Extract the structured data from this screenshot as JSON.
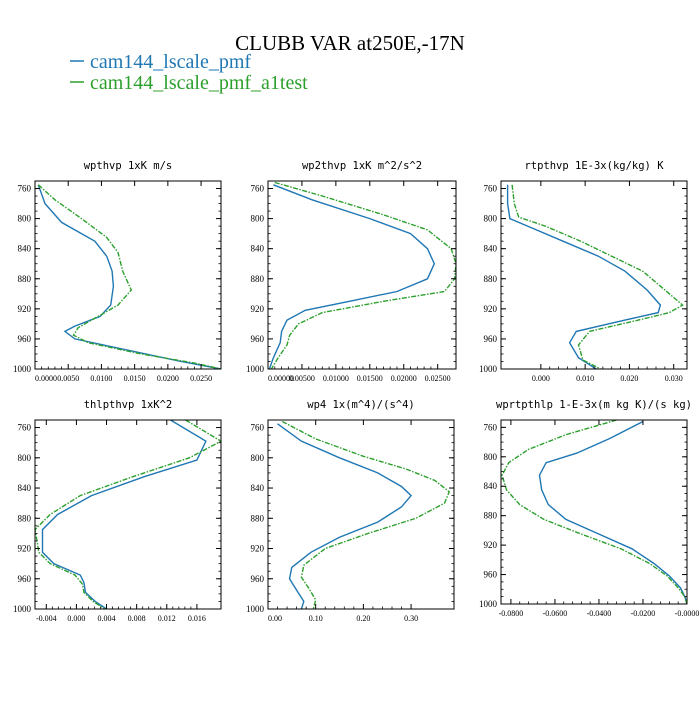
{
  "title": "CLUBB VAR at250E,-17N",
  "legend": [
    {
      "label": "cam144_lscale_pmf",
      "color": "#1f77b4"
    },
    {
      "label": "cam144_lscale_pmf_a1test",
      "color": "#2ca02c"
    }
  ],
  "chart_data": [
    {
      "type": "line",
      "title": "wpthvp  1xK m/s",
      "xlim": [
        0,
        0.028
      ],
      "ylim": [
        1000,
        750
      ],
      "xticks": [
        0,
        0.005,
        0.01,
        0.015,
        0.02,
        0.025
      ],
      "xtick_labels": [
        "0.0000",
        "0.0050",
        "0.0100",
        "0.0150",
        "0.0200",
        "0.0250"
      ],
      "yticks": [
        760,
        800,
        840,
        880,
        920,
        960,
        1000
      ],
      "series": [
        {
          "name": "cam144_lscale_pmf",
          "color": "#1f77b4",
          "dashed": false,
          "x": [
            0.0005,
            0.0015,
            0.004,
            0.009,
            0.0108,
            0.0116,
            0.0118,
            0.0114,
            0.0098,
            0.006,
            0.0045,
            0.006,
            0.014,
            0.022,
            0.028
          ],
          "y": [
            755,
            780,
            805,
            830,
            850,
            870,
            890,
            915,
            930,
            943,
            950,
            960,
            975,
            990,
            1000
          ]
        },
        {
          "name": "cam144_lscale_pmf_a1test",
          "color": "#2ca02c",
          "dashed": true,
          "x": [
            0.0005,
            0.003,
            0.007,
            0.0108,
            0.0125,
            0.0132,
            0.0145,
            0.0125,
            0.0095,
            0.0065,
            0.0058,
            0.008,
            0.016,
            0.024,
            0.028
          ],
          "y": [
            755,
            775,
            800,
            825,
            845,
            870,
            895,
            915,
            930,
            945,
            955,
            965,
            980,
            992,
            1000
          ]
        }
      ]
    },
    {
      "type": "line",
      "title": "wp2thvp  1xK m^2/s^2",
      "xlim": [
        0,
        0.0277
      ],
      "ylim": [
        1000,
        750
      ],
      "xticks": [
        0,
        0.005,
        0.01,
        0.015,
        0.02,
        0.025
      ],
      "xtick_labels": [
        "0.00000",
        "0.00500",
        "0.01000",
        "0.01500",
        "0.02000",
        "0.02500"
      ],
      "yticks": [
        760,
        800,
        840,
        880,
        920,
        960,
        1000
      ],
      "series": [
        {
          "name": "cam144_lscale_pmf",
          "color": "#1f77b4",
          "dashed": false,
          "x": [
            0.0008,
            0.0065,
            0.015,
            0.021,
            0.0235,
            0.0245,
            0.0235,
            0.019,
            0.012,
            0.0055,
            0.0028,
            0.002,
            0.0018,
            0.0008,
            0.0002
          ],
          "y": [
            755,
            775,
            800,
            820,
            840,
            860,
            880,
            897,
            910,
            922,
            935,
            950,
            965,
            985,
            1000
          ]
        },
        {
          "name": "cam144_lscale_pmf_a1test",
          "color": "#2ca02c",
          "dashed": true,
          "x": [
            0.001,
            0.008,
            0.017,
            0.0235,
            0.027,
            0.0277,
            0.0275,
            0.026,
            0.017,
            0.008,
            0.0045,
            0.0032,
            0.0028,
            0.0015,
            0.0005
          ],
          "y": [
            752,
            770,
            795,
            815,
            840,
            860,
            880,
            897,
            910,
            925,
            940,
            955,
            968,
            985,
            1000
          ]
        }
      ]
    },
    {
      "type": "line",
      "title": "rtpthvp  1E-3x(kg/kg) K",
      "xlim": [
        -0.009,
        0.033
      ],
      "ylim": [
        1000,
        750
      ],
      "xticks": [
        0,
        0.01,
        0.02,
        0.03
      ],
      "xtick_labels": [
        "0.000",
        "0.010",
        "0.020",
        "0.030"
      ],
      "yticks": [
        760,
        800,
        840,
        880,
        920,
        960,
        1000
      ],
      "series": [
        {
          "name": "cam144_lscale_pmf",
          "color": "#1f77b4",
          "dashed": false,
          "x": [
            -0.0075,
            -0.0075,
            -0.007,
            -0.003,
            0.005,
            0.013,
            0.019,
            0.024,
            0.027,
            0.0265,
            0.019,
            0.008,
            0.0065,
            0.0085,
            0.0125
          ],
          "y": [
            755,
            780,
            800,
            810,
            830,
            850,
            870,
            895,
            915,
            925,
            935,
            950,
            965,
            985,
            1000
          ]
        },
        {
          "name": "cam144_lscale_pmf_a1test",
          "color": "#2ca02c",
          "dashed": true,
          "x": [
            -0.0065,
            -0.006,
            -0.005,
            0.001,
            0.009,
            0.016,
            0.023,
            0.028,
            0.032,
            0.029,
            0.022,
            0.011,
            0.0085,
            0.0095,
            0.0135
          ],
          "y": [
            755,
            780,
            798,
            810,
            830,
            850,
            870,
            895,
            915,
            925,
            935,
            950,
            968,
            988,
            1000
          ]
        }
      ]
    },
    {
      "type": "line",
      "title": "thlpthvp  1xK^2",
      "xlim": [
        -0.0055,
        0.0192
      ],
      "ylim": [
        1000,
        750
      ],
      "xticks": [
        -0.004,
        0,
        0.004,
        0.008,
        0.012,
        0.016
      ],
      "xtick_labels": [
        "-0.004",
        "0.000",
        "0.004",
        "0.008",
        "0.012",
        "0.016"
      ],
      "yticks": [
        760,
        800,
        840,
        880,
        920,
        960,
        1000
      ],
      "series": [
        {
          "name": "cam144_lscale_pmf",
          "color": "#1f77b4",
          "dashed": false,
          "x": [
            0.0125,
            0.0172,
            0.016,
            0.009,
            0.002,
            -0.0025,
            -0.0045,
            -0.0045,
            -0.0045,
            -0.003,
            0.0005,
            0.001,
            0.0012,
            0.0025,
            0.004
          ],
          "y": [
            750,
            778,
            803,
            825,
            850,
            875,
            895,
            910,
            925,
            940,
            955,
            965,
            978,
            990,
            1000
          ]
        },
        {
          "name": "cam144_lscale_pmf_a1test",
          "color": "#2ca02c",
          "dashed": true,
          "x": [
            0.0145,
            0.0192,
            0.015,
            0.0075,
            0.0005,
            -0.0035,
            -0.0055,
            -0.0052,
            -0.005,
            -0.0035,
            -0.0002,
            0.0008,
            0.001,
            0.0022,
            0.0038
          ],
          "y": [
            750,
            778,
            800,
            825,
            850,
            875,
            895,
            912,
            925,
            940,
            955,
            967,
            978,
            990,
            1000
          ]
        }
      ]
    },
    {
      "type": "line",
      "title": "wp4  1x(m^4)/(s^4)",
      "xlim": [
        0,
        0.39
      ],
      "ylim": [
        1000,
        750
      ],
      "xticks": [
        0,
        0.1,
        0.2,
        0.3
      ],
      "xtick_labels": [
        "0.00",
        "0.10",
        "0.20",
        "0.30"
      ],
      "yticks": [
        760,
        800,
        840,
        880,
        920,
        960,
        1000
      ],
      "series": [
        {
          "name": "cam144_lscale_pmf",
          "color": "#1f77b4",
          "dashed": false,
          "x": [
            0.02,
            0.07,
            0.15,
            0.23,
            0.28,
            0.3,
            0.28,
            0.23,
            0.15,
            0.09,
            0.05,
            0.045,
            0.06,
            0.075,
            0.07
          ],
          "y": [
            755,
            778,
            800,
            820,
            838,
            850,
            865,
            885,
            905,
            925,
            945,
            960,
            975,
            990,
            1000
          ]
        },
        {
          "name": "cam144_lscale_pmf_a1test",
          "color": "#2ca02c",
          "dashed": true,
          "x": [
            0.03,
            0.1,
            0.2,
            0.29,
            0.35,
            0.38,
            0.37,
            0.31,
            0.21,
            0.12,
            0.075,
            0.07,
            0.085,
            0.1,
            0.095
          ],
          "y": [
            752,
            775,
            798,
            815,
            830,
            845,
            860,
            880,
            900,
            920,
            942,
            958,
            972,
            988,
            1000
          ]
        }
      ]
    },
    {
      "type": "line",
      "title": "wprtpthlp  1-E-3x(m kg K)/(s kg)",
      "xlim": [
        -0.0845,
        0
      ],
      "ylim": [
        1000,
        750
      ],
      "xticks": [
        -0.08,
        -0.06,
        -0.04,
        -0.02,
        0
      ],
      "xtick_labels": [
        "-0.0800",
        "-0.0600",
        "-0.0400",
        "-0.0200",
        "-0.0000"
      ],
      "yticks": [
        760,
        800,
        840,
        880,
        920,
        960,
        1000
      ],
      "series": [
        {
          "name": "cam144_lscale_pmf",
          "color": "#1f77b4",
          "dashed": false,
          "x": [
            -0.02,
            -0.035,
            -0.05,
            -0.064,
            -0.067,
            -0.066,
            -0.063,
            -0.055,
            -0.04,
            -0.025,
            -0.015,
            -0.008,
            -0.003,
            -0.001,
            0
          ],
          "y": [
            752,
            775,
            795,
            808,
            825,
            845,
            865,
            885,
            905,
            925,
            945,
            962,
            978,
            990,
            1000
          ]
        },
        {
          "name": "cam144_lscale_pmf_a1test",
          "color": "#2ca02c",
          "dashed": true,
          "x": [
            -0.032,
            -0.055,
            -0.072,
            -0.081,
            -0.084,
            -0.082,
            -0.076,
            -0.065,
            -0.048,
            -0.03,
            -0.017,
            -0.009,
            -0.004,
            -0.001,
            0
          ],
          "y": [
            750,
            770,
            790,
            808,
            825,
            845,
            865,
            885,
            905,
            925,
            945,
            962,
            978,
            990,
            1000
          ]
        }
      ]
    }
  ]
}
